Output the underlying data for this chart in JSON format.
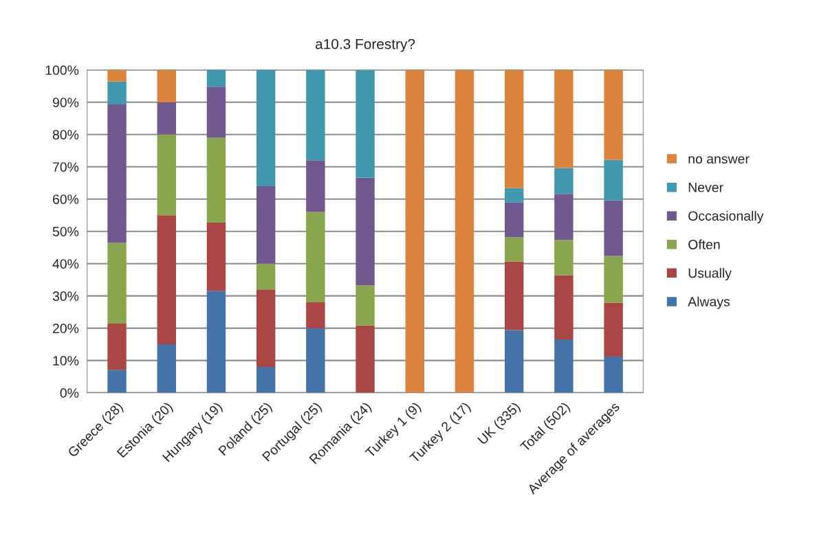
{
  "chart_data": {
    "type": "bar",
    "title": "a10.3 Forestry?",
    "stacked": true,
    "grid": "y",
    "legend": "right",
    "categories": [
      "Greece (28)",
      "Estonia (20)",
      "Hungary (19)",
      "Poland (25)",
      "Portugal (25)",
      "Romania (24)",
      "Turkey 1 (9)",
      "Turkey 2 (17)",
      "UK (335)",
      "Total (502)",
      "Average of averages"
    ],
    "series": [
      {
        "name": "Always",
        "color": "#4572a7",
        "values": [
          7.1,
          15,
          31.6,
          8,
          20,
          0,
          0,
          0,
          19.4,
          16.5,
          11.2
        ]
      },
      {
        "name": "Usually",
        "color": "#aa4643",
        "values": [
          14.3,
          40,
          21.1,
          24,
          8,
          20.8,
          0,
          0,
          21.2,
          19.9,
          16.7
        ]
      },
      {
        "name": "Often",
        "color": "#89a54e",
        "values": [
          25.0,
          25,
          26.3,
          8,
          28,
          12.5,
          0,
          0,
          7.6,
          10.9,
          14.5
        ]
      },
      {
        "name": "Occasionally",
        "color": "#71588f",
        "values": [
          42.9,
          10,
          15.8,
          24,
          16,
          33.3,
          0,
          0,
          10.7,
          14.3,
          17.2
        ]
      },
      {
        "name": "Never",
        "color": "#4198af",
        "values": [
          7.1,
          0,
          5.3,
          36,
          28,
          33.3,
          0,
          0,
          4.5,
          8.0,
          12.5
        ]
      },
      {
        "name": "no answer",
        "color": "#db843d",
        "values": [
          3.6,
          10,
          0,
          0,
          0,
          0,
          100,
          100,
          36.6,
          30.4,
          27.9
        ]
      }
    ],
    "ylim": [
      0,
      100
    ],
    "yticks": [
      {
        "value": 0,
        "label": "0%"
      },
      {
        "value": 10,
        "label": "10%"
      },
      {
        "value": 20,
        "label": "20%"
      },
      {
        "value": 30,
        "label": "30%"
      },
      {
        "value": 40,
        "label": "40%"
      },
      {
        "value": 50,
        "label": "50%"
      },
      {
        "value": 60,
        "label": "60%"
      },
      {
        "value": 70,
        "label": "70%"
      },
      {
        "value": 80,
        "label": "80%"
      },
      {
        "value": 90,
        "label": "90%"
      },
      {
        "value": 100,
        "label": "100%"
      }
    ]
  }
}
